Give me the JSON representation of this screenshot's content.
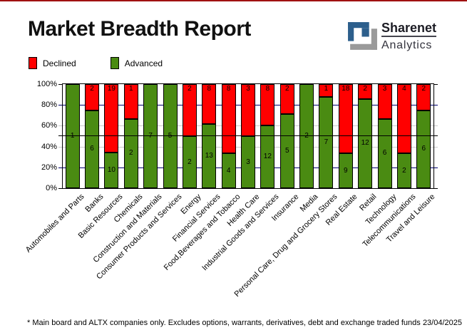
{
  "header": {
    "title": "Market Breadth Report",
    "logo": {
      "name": "Sharenet",
      "sub": "Analytics"
    }
  },
  "legend": [
    {
      "label": "Declined",
      "color": "#ff0000"
    },
    {
      "label": "Advanced",
      "color": "#4a8b12"
    }
  ],
  "colors": {
    "declined": "#ff0000",
    "advanced": "#4a8b12",
    "grid_minor": "#cccccc",
    "grid_navy": "#00006f",
    "reference_line": "#000000",
    "accent_top": "#a01111",
    "logo_blue": "#2d5f8c",
    "logo_gray": "#9a9a9a"
  },
  "chart_data": {
    "type": "bar",
    "stacked": true,
    "normalized_to": "100%",
    "title": "Market Breadth Report",
    "ylim": [
      0,
      100
    ],
    "yticks": [
      "100%",
      "80%",
      "60%",
      "40%",
      "20%",
      "0%"
    ],
    "grid": {
      "minor_gray_levels": [
        40,
        60
      ],
      "navy_levels": [
        20,
        80
      ],
      "reference_line": 50
    },
    "legend_position": "top-left",
    "value_labels": true,
    "categories": [
      "Automobiles and Parts",
      "Banks",
      "Basic Resources",
      "Chemicals",
      "Construction and Materials",
      "Consumer Products and Services",
      "Energy",
      "Financial Services",
      "Food,Beverages and Tobacco",
      "Health Care",
      "Industrial Goods and Services",
      "Insurance",
      "Media",
      "Personal Care, Drug and Grocery Stores",
      "Real Estate",
      "Retail",
      "Technology",
      "Telecommunications",
      "Travel and Leisure"
    ],
    "series": [
      {
        "name": "Declined",
        "color": "#ff0000",
        "values": [
          0,
          2,
          19,
          1,
          0,
          0,
          2,
          8,
          8,
          3,
          8,
          2,
          0,
          1,
          18,
          2,
          3,
          4,
          2
        ]
      },
      {
        "name": "Advanced",
        "color": "#4a8b12",
        "values": [
          1,
          6,
          10,
          2,
          7,
          5,
          2,
          13,
          4,
          3,
          12,
          5,
          2,
          7,
          9,
          12,
          6,
          2,
          6
        ]
      }
    ]
  },
  "footer": {
    "note": "* Main board and ALTX companies only. Excludes options, warrants, derivatives, debt and exchange traded funds",
    "date": "23/04/2025"
  }
}
